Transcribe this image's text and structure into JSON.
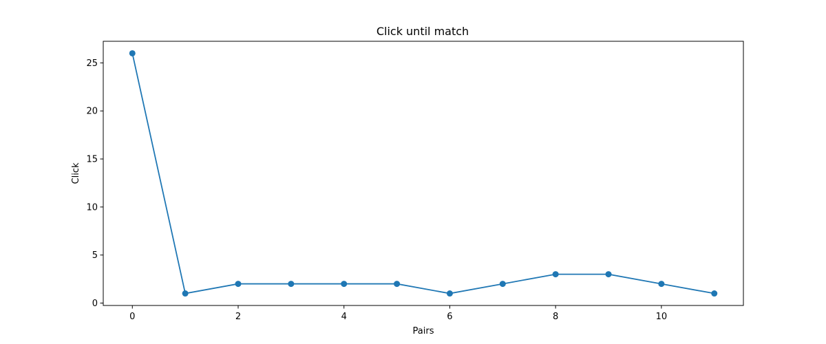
{
  "chart_data": {
    "type": "line",
    "title": "Click until match",
    "xlabel": "Pairs",
    "ylabel": "Click",
    "x": [
      0,
      1,
      2,
      3,
      4,
      5,
      6,
      7,
      8,
      9,
      10,
      11
    ],
    "series": [
      {
        "name": "Click",
        "values": [
          26,
          1,
          2,
          2,
          2,
          2,
          1,
          2,
          3,
          3,
          2,
          1
        ],
        "color": "#1f77b4",
        "marker": "circle"
      }
    ],
    "xticks": [
      0,
      2,
      4,
      6,
      8,
      10
    ],
    "yticks": [
      0,
      5,
      10,
      15,
      20,
      25
    ],
    "xlim": [
      -0.55,
      11.55
    ],
    "ylim": [
      -0.25,
      27.25
    ],
    "grid": false,
    "legend": "none"
  }
}
